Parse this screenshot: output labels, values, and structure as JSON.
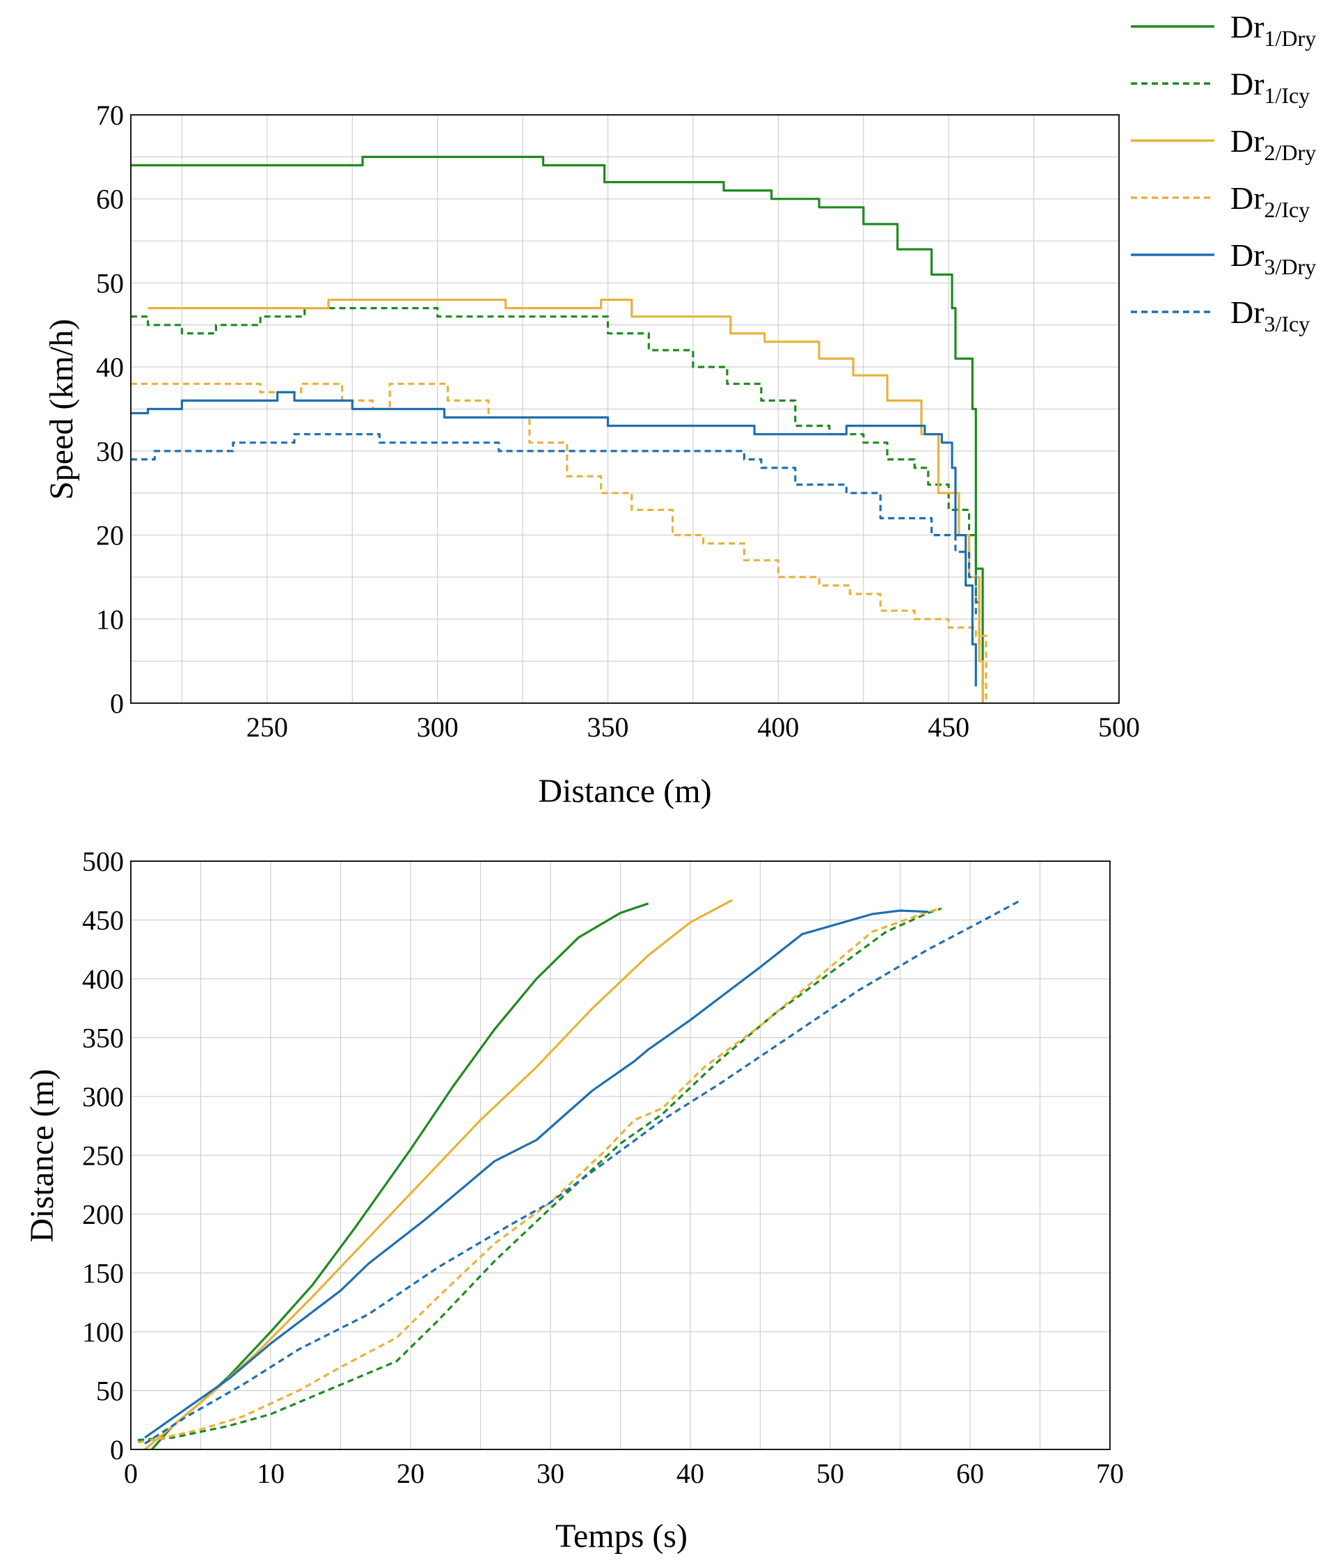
{
  "colors": {
    "green": "#1f8a1f",
    "orange": "#e8b23a",
    "blue": "#1f6fb0"
  },
  "legend": [
    {
      "key": "dr1dry",
      "main": "Dr",
      "sub": "1/Dry",
      "color": "#1f8a1f",
      "dash": "solid"
    },
    {
      "key": "dr1icy",
      "main": "Dr",
      "sub": "1/Icy",
      "color": "#1f8a1f",
      "dash": "dashed"
    },
    {
      "key": "dr2dry",
      "main": "Dr",
      "sub": "2/Dry",
      "color": "#e8b23a",
      "dash": "solid"
    },
    {
      "key": "dr2icy",
      "main": "Dr",
      "sub": "2/Icy",
      "color": "#e8b23a",
      "dash": "dashed"
    },
    {
      "key": "dr3dry",
      "main": "Dr",
      "sub": "3/Dry",
      "color": "#1f6fb0",
      "dash": "solid"
    },
    {
      "key": "dr3icy",
      "main": "Dr",
      "sub": "3/Icy",
      "color": "#1f6fb0",
      "dash": "dashed"
    }
  ],
  "chart_data": [
    {
      "type": "line",
      "id": "speed",
      "title": "",
      "xlabel": "Distance (m)",
      "ylabel": "Speed (km/h)",
      "xlim": [
        210,
        500
      ],
      "ylim": [
        0,
        70
      ],
      "xticks": [
        250,
        300,
        350,
        400,
        450,
        500
      ],
      "yticks": [
        0,
        10,
        20,
        30,
        40,
        50,
        60,
        70
      ],
      "xgrid": [
        225,
        250,
        275,
        300,
        325,
        350,
        375,
        400,
        425,
        450,
        475
      ],
      "ygrid": [
        5,
        10,
        15,
        20,
        25,
        30,
        35,
        40,
        45,
        50,
        55,
        60,
        65
      ],
      "series": [
        {
          "name": "Dr1/Dry",
          "key": "dr1dry",
          "color": "#1f8a1f",
          "dash": "solid",
          "step": true,
          "x": [
            210,
            278,
            331,
            349,
            384,
            398,
            412,
            425,
            435,
            445,
            451,
            452,
            457,
            458,
            460,
            460
          ],
          "y": [
            64,
            65,
            64,
            62,
            61,
            60,
            59,
            57,
            54,
            51,
            47,
            41,
            35,
            16,
            7,
            0
          ]
        },
        {
          "name": "Dr1/Icy",
          "key": "dr1icy",
          "color": "#1f8a1f",
          "dash": "dashed",
          "step": true,
          "x": [
            210,
            215,
            225,
            235,
            248,
            261,
            300,
            320,
            350,
            362,
            375,
            385,
            395,
            405,
            415,
            425,
            432,
            440,
            444,
            450,
            456,
            458,
            459
          ],
          "y": [
            46,
            45,
            44,
            45,
            46,
            47,
            46,
            46,
            44,
            42,
            40,
            38,
            36,
            33,
            32,
            31,
            29,
            28,
            26,
            23,
            20,
            12,
            7
          ]
        },
        {
          "name": "Dr2/Dry",
          "key": "dr2dry",
          "color": "#e8b23a",
          "dash": "solid",
          "step": true,
          "x": [
            215,
            268,
            320,
            348,
            357,
            386,
            396,
            412,
            422,
            432,
            442,
            447,
            453,
            456,
            459,
            460
          ],
          "y": [
            47,
            48,
            47,
            48,
            46,
            44,
            43,
            41,
            39,
            36,
            32,
            25,
            20,
            15,
            5,
            0
          ]
        },
        {
          "name": "Dr2/Icy",
          "key": "dr2icy",
          "color": "#e8b23a",
          "dash": "dashed",
          "step": true,
          "x": [
            210,
            248,
            260,
            272,
            281,
            286,
            303,
            315,
            327,
            338,
            348,
            357,
            369,
            378,
            390,
            400,
            412,
            421,
            430,
            440,
            450,
            458,
            461
          ],
          "y": [
            38,
            37,
            38,
            36,
            35,
            38,
            36,
            34,
            31,
            27,
            25,
            23,
            20,
            19,
            17,
            15,
            14,
            13,
            11,
            10,
            9,
            8,
            0
          ]
        },
        {
          "name": "Dr3/Dry",
          "key": "dr3dry",
          "color": "#1f6fb0",
          "dash": "solid",
          "step": true,
          "x": [
            210,
            215,
            225,
            253,
            258,
            275,
            302,
            350,
            393,
            420,
            443,
            448,
            451,
            452,
            455,
            457,
            458
          ],
          "y": [
            34.5,
            35,
            36,
            37,
            36,
            35,
            34,
            33,
            32,
            33,
            32,
            31,
            28,
            20,
            14,
            7,
            2
          ]
        },
        {
          "name": "Dr3/Icy",
          "key": "dr3icy",
          "color": "#1f6fb0",
          "dash": "dashed",
          "step": true,
          "x": [
            210,
            217,
            240,
            258,
            283,
            318,
            340,
            380,
            390,
            395,
            405,
            420,
            430,
            445,
            452,
            456,
            458
          ],
          "y": [
            29,
            30,
            31,
            32,
            31,
            30,
            30,
            30,
            29,
            28,
            26,
            25,
            22,
            20,
            18,
            15,
            10
          ]
        }
      ]
    },
    {
      "type": "line",
      "id": "distance",
      "title": "",
      "xlabel": "Temps (s)",
      "ylabel": "Distance (m)",
      "xlim": [
        0,
        70
      ],
      "ylim": [
        0,
        500
      ],
      "xticks": [
        0,
        10,
        20,
        30,
        40,
        50,
        60,
        70
      ],
      "yticks": [
        0,
        50,
        100,
        150,
        200,
        250,
        300,
        350,
        400,
        450,
        500
      ],
      "xgrid": [
        5,
        10,
        15,
        20,
        25,
        30,
        35,
        40,
        45,
        50,
        55,
        60,
        65
      ],
      "ygrid": [
        50,
        100,
        150,
        200,
        250,
        300,
        350,
        400,
        450
      ],
      "series": [
        {
          "name": "Dr1/Dry",
          "key": "dr1dry",
          "color": "#1f8a1f",
          "dash": "solid",
          "step": false,
          "x": [
            1.5,
            3,
            5,
            7,
            10,
            13,
            16,
            20,
            23,
            26,
            29,
            32,
            35,
            37
          ],
          "y": [
            0,
            20,
            40,
            62,
            100,
            140,
            188,
            255,
            308,
            357,
            400,
            435,
            456,
            464
          ]
        },
        {
          "name": "Dr1/Icy",
          "key": "dr1icy",
          "color": "#1f8a1f",
          "dash": "dashed",
          "step": false,
          "x": [
            0.5,
            3,
            7,
            10,
            14,
            17,
            19,
            22,
            26,
            30,
            35,
            38,
            42,
            46,
            50,
            54,
            57,
            58
          ],
          "y": [
            8,
            10,
            20,
            30,
            50,
            65,
            75,
            110,
            160,
            205,
            260,
            285,
            330,
            370,
            405,
            440,
            456,
            460
          ]
        },
        {
          "name": "Dr2/Dry",
          "key": "dr2dry",
          "color": "#e8b23a",
          "dash": "solid",
          "step": false,
          "x": [
            1,
            3,
            6,
            9,
            13,
            17,
            21,
            25,
            29,
            33,
            37,
            40,
            43
          ],
          "y": [
            0,
            20,
            50,
            82,
            130,
            180,
            230,
            280,
            325,
            375,
            420,
            448,
            467
          ]
        },
        {
          "name": "Dr2/Icy",
          "key": "dr2icy",
          "color": "#e8b23a",
          "dash": "dashed",
          "step": false,
          "x": [
            0.5,
            2,
            5,
            8,
            12,
            15,
            19,
            22,
            26,
            30,
            34,
            36,
            38,
            41,
            45,
            49,
            53,
            57,
            58
          ],
          "y": [
            6,
            9,
            17,
            28,
            50,
            70,
            95,
            130,
            175,
            210,
            255,
            280,
            290,
            325,
            360,
            400,
            440,
            457,
            460
          ]
        },
        {
          "name": "Dr3/Dry",
          "key": "dr3dry",
          "color": "#1f6fb0",
          "dash": "solid",
          "step": false,
          "x": [
            1,
            4,
            7,
            10,
            15,
            17,
            21,
            26,
            29,
            33,
            36,
            37,
            40,
            45,
            48,
            53,
            55,
            57
          ],
          "y": [
            10,
            35,
            60,
            90,
            135,
            158,
            195,
            245,
            263,
            305,
            330,
            340,
            365,
            410,
            438,
            455,
            458,
            457
          ]
        },
        {
          "name": "Dr3/Icy",
          "key": "dr3icy",
          "color": "#1f6fb0",
          "dash": "dashed",
          "step": false,
          "x": [
            1,
            4,
            8,
            12,
            17,
            22,
            27,
            30,
            34,
            38,
            42,
            47,
            52,
            57,
            61,
            63.5
          ],
          "y": [
            5,
            28,
            55,
            85,
            115,
            155,
            190,
            210,
            245,
            280,
            310,
            350,
            390,
            425,
            450,
            466
          ]
        }
      ]
    }
  ]
}
